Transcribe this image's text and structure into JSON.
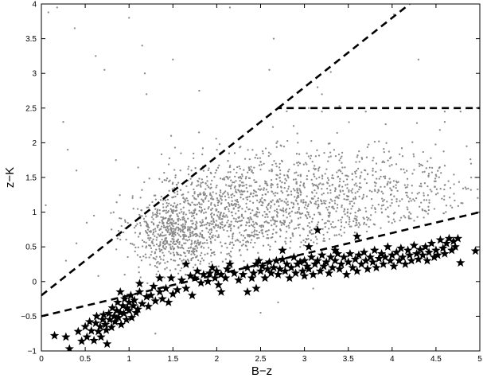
{
  "chart_data": {
    "type": "scatter",
    "xlabel": "B−z",
    "ylabel": "z−K",
    "xlim": [
      0,
      5
    ],
    "ylim": [
      -1,
      4
    ],
    "xticks": [
      0,
      0.5,
      1,
      1.5,
      2,
      2.5,
      3,
      3.5,
      4,
      4.5,
      5
    ],
    "yticks": [
      -1,
      -0.5,
      0,
      0.5,
      1,
      1.5,
      2,
      2.5,
      3,
      3.5,
      4
    ],
    "xtick_labels": [
      "0",
      "0.5",
      "1",
      "1.5",
      "2",
      "2.5",
      "3",
      "3.5",
      "4",
      "4.5",
      "5"
    ],
    "ytick_labels": [
      "−1",
      "−0.5",
      "0",
      "0.5",
      "1",
      "1.5",
      "2",
      "2.5",
      "3",
      "3.5",
      "4"
    ],
    "grid": false,
    "colors": {
      "dots": "#8a8a8a",
      "stars": "#000000",
      "lines": "#000000"
    },
    "boundary_lines": [
      {
        "x": [
          0,
          2.7,
          5
        ],
        "y": [
          -0.2,
          2.5,
          2.5
        ]
      },
      {
        "x": [
          2.7,
          4.2
        ],
        "y": [
          2.5,
          4.0
        ]
      },
      {
        "x": [
          0,
          5
        ],
        "y": [
          -0.5,
          1.0
        ]
      }
    ],
    "series": [
      {
        "marker": "dot",
        "approx_count": 2300,
        "clusters": [
          {
            "cx": 1.5,
            "cy": 0.7,
            "sx": 0.25,
            "sy": 0.28,
            "n": 500
          },
          {
            "cx": 2.1,
            "cy": 1.0,
            "sx": 0.45,
            "sy": 0.38,
            "n": 700
          },
          {
            "cx": 3.0,
            "cy": 1.2,
            "sx": 0.6,
            "sy": 0.4,
            "n": 650
          },
          {
            "cx": 4.0,
            "cy": 1.15,
            "sx": 0.55,
            "sy": 0.4,
            "n": 350
          }
        ],
        "outliers": [
          [
            0.08,
            3.88
          ],
          [
            0.18,
            3.95
          ],
          [
            0.38,
            3.65
          ],
          [
            0.62,
            3.25
          ],
          [
            0.72,
            3.05
          ],
          [
            1.0,
            3.8
          ],
          [
            1.15,
            3.4
          ],
          [
            1.18,
            3.0
          ],
          [
            1.5,
            3.2
          ],
          [
            1.48,
            2.1
          ],
          [
            2.15,
            3.95
          ],
          [
            2.65,
            3.5
          ],
          [
            2.6,
            3.05
          ],
          [
            3.3,
            3.02
          ],
          [
            3.15,
            2.8
          ],
          [
            3.2,
            2.7
          ],
          [
            3.4,
            3.2
          ],
          [
            3.05,
            2.5
          ],
          [
            3.2,
            2.45
          ],
          [
            3.7,
            2.45
          ],
          [
            4.02,
            3.85
          ],
          [
            4.3,
            3.2
          ],
          [
            4.6,
            2.45
          ],
          [
            4.78,
            2.45
          ],
          [
            0.25,
            2.3
          ],
          [
            0.3,
            1.9
          ],
          [
            0.05,
            1.1
          ],
          [
            0.4,
            1.6
          ],
          [
            0.6,
            0.95
          ],
          [
            0.85,
            1.75
          ],
          [
            1.05,
            1.05
          ],
          [
            0.4,
            0.55
          ],
          [
            0.8,
            0.75
          ],
          [
            1.2,
            2.7
          ],
          [
            1.8,
            2.75
          ],
          [
            4.6,
            2.3
          ],
          [
            4.9,
            1.7
          ],
          [
            4.85,
            1.95
          ],
          [
            4.95,
            1.5
          ],
          [
            0.95,
            0.1
          ],
          [
            2.7,
            -0.3
          ],
          [
            3.1,
            -0.1
          ],
          [
            2.5,
            -0.45
          ],
          [
            1.3,
            -0.75
          ],
          [
            0.28,
            0.3
          ]
        ]
      },
      {
        "marker": "star",
        "points": [
          [
            0.15,
            -0.78
          ],
          [
            0.32,
            -0.97
          ],
          [
            0.28,
            -0.8
          ],
          [
            0.42,
            -0.72
          ],
          [
            0.46,
            -0.86
          ],
          [
            0.5,
            -0.65
          ],
          [
            0.52,
            -0.8
          ],
          [
            0.55,
            -0.58
          ],
          [
            0.57,
            -0.71
          ],
          [
            0.6,
            -0.85
          ],
          [
            0.62,
            -0.6
          ],
          [
            0.63,
            -0.5
          ],
          [
            0.65,
            -0.72
          ],
          [
            0.67,
            -0.65
          ],
          [
            0.68,
            -0.8
          ],
          [
            0.7,
            -0.55
          ],
          [
            0.71,
            -0.48
          ],
          [
            0.73,
            -0.62
          ],
          [
            0.74,
            -0.7
          ],
          [
            0.75,
            -0.9
          ],
          [
            0.77,
            -0.46
          ],
          [
            0.78,
            -0.55
          ],
          [
            0.8,
            -0.66
          ],
          [
            0.81,
            -0.38
          ],
          [
            0.83,
            -0.5
          ],
          [
            0.84,
            -0.58
          ],
          [
            0.86,
            -0.42
          ],
          [
            0.87,
            -0.3
          ],
          [
            0.88,
            -0.52
          ],
          [
            0.9,
            -0.45
          ],
          [
            0.91,
            -0.62
          ],
          [
            0.93,
            -0.35
          ],
          [
            0.94,
            -0.46
          ],
          [
            0.95,
            -0.25
          ],
          [
            0.97,
            -0.55
          ],
          [
            0.98,
            -0.38
          ],
          [
            1.0,
            -0.42
          ],
          [
            1.0,
            -0.3
          ],
          [
            1.02,
            -0.2
          ],
          [
            1.03,
            -0.52
          ],
          [
            1.05,
            -0.35
          ],
          [
            1.06,
            -0.27
          ],
          [
            1.08,
            -0.45
          ],
          [
            1.1,
            -0.4
          ],
          [
            1.12,
            -0.15
          ],
          [
            1.15,
            -0.32
          ],
          [
            1.2,
            -0.22
          ],
          [
            1.22,
            -0.36
          ],
          [
            1.25,
            -0.2
          ],
          [
            1.3,
            -0.28
          ],
          [
            1.35,
            -0.15
          ],
          [
            1.38,
            -0.25
          ],
          [
            1.42,
            -0.1
          ],
          [
            1.45,
            -0.3
          ],
          [
            1.48,
            0.05
          ],
          [
            1.5,
            -0.18
          ],
          [
            1.55,
            -0.12
          ],
          [
            1.6,
            0.02
          ],
          [
            1.65,
            -0.1
          ],
          [
            1.7,
            0.08
          ],
          [
            1.72,
            -0.2
          ],
          [
            1.75,
            0.05
          ],
          [
            1.78,
            0.15
          ],
          [
            1.82,
            -0.02
          ],
          [
            1.85,
            0.1
          ],
          [
            1.9,
            0.0
          ],
          [
            1.92,
            0.12
          ],
          [
            1.95,
            0.2
          ],
          [
            1.98,
            0.05
          ],
          [
            2.0,
            0.15
          ],
          [
            2.02,
            -0.05
          ],
          [
            2.05,
            0.1
          ],
          [
            2.1,
            0.05
          ],
          [
            2.12,
            0.18
          ],
          [
            2.15,
            0.25
          ],
          [
            2.2,
            0.12
          ],
          [
            2.25,
            0.02
          ],
          [
            2.3,
            0.1
          ],
          [
            2.35,
            0.2
          ],
          [
            2.4,
            0.05
          ],
          [
            2.42,
            0.12
          ],
          [
            2.45,
            0.25
          ],
          [
            2.48,
            0.3
          ],
          [
            2.5,
            0.15
          ],
          [
            2.52,
            0.22
          ],
          [
            2.55,
            0.05
          ],
          [
            2.58,
            0.18
          ],
          [
            2.6,
            0.28
          ],
          [
            2.62,
            0.12
          ],
          [
            2.65,
            0.2
          ],
          [
            2.68,
            0.3
          ],
          [
            2.7,
            0.1
          ],
          [
            2.72,
            0.18
          ],
          [
            2.75,
            0.32
          ],
          [
            2.78,
            0.15
          ],
          [
            2.8,
            0.25
          ],
          [
            2.83,
            0.05
          ],
          [
            2.85,
            0.2
          ],
          [
            2.88,
            0.35
          ],
          [
            2.9,
            0.12
          ],
          [
            2.92,
            0.25
          ],
          [
            2.95,
            0.28
          ],
          [
            2.98,
            0.15
          ],
          [
            3.0,
            0.3
          ],
          [
            3.0,
            0.08
          ],
          [
            3.03,
            0.22
          ],
          [
            3.05,
            0.18
          ],
          [
            3.08,
            0.35
          ],
          [
            3.1,
            0.1
          ],
          [
            3.12,
            0.25
          ],
          [
            3.15,
            0.74
          ],
          [
            3.15,
            0.3
          ],
          [
            3.18,
            0.15
          ],
          [
            3.2,
            0.38
          ],
          [
            3.22,
            0.22
          ],
          [
            3.25,
            0.28
          ],
          [
            3.28,
            0.12
          ],
          [
            3.3,
            0.35
          ],
          [
            3.32,
            0.2
          ],
          [
            3.35,
            0.3
          ],
          [
            3.38,
            0.4
          ],
          [
            3.4,
            0.18
          ],
          [
            3.42,
            0.25
          ],
          [
            3.45,
            0.35
          ],
          [
            3.48,
            0.1
          ],
          [
            3.5,
            0.28
          ],
          [
            3.52,
            0.4
          ],
          [
            3.55,
            0.2
          ],
          [
            3.58,
            0.32
          ],
          [
            3.6,
            0.15
          ],
          [
            3.62,
            0.38
          ],
          [
            3.65,
            0.25
          ],
          [
            3.68,
            0.42
          ],
          [
            3.7,
            0.3
          ],
          [
            3.72,
            0.18
          ],
          [
            3.75,
            0.35
          ],
          [
            3.78,
            0.28
          ],
          [
            3.8,
            0.45
          ],
          [
            3.82,
            0.2
          ],
          [
            3.85,
            0.33
          ],
          [
            3.88,
            0.4
          ],
          [
            3.9,
            0.25
          ],
          [
            3.92,
            0.35
          ],
          [
            3.95,
            0.5
          ],
          [
            3.98,
            0.3
          ],
          [
            4.0,
            0.38
          ],
          [
            4.02,
            0.22
          ],
          [
            4.05,
            0.42
          ],
          [
            4.08,
            0.3
          ],
          [
            4.1,
            0.48
          ],
          [
            4.12,
            0.35
          ],
          [
            4.15,
            0.25
          ],
          [
            4.18,
            0.45
          ],
          [
            4.2,
            0.38
          ],
          [
            4.22,
            0.3
          ],
          [
            4.25,
            0.52
          ],
          [
            4.28,
            0.4
          ],
          [
            4.3,
            0.32
          ],
          [
            4.32,
            0.46
          ],
          [
            4.35,
            0.38
          ],
          [
            4.38,
            0.5
          ],
          [
            4.4,
            0.3
          ],
          [
            4.42,
            0.42
          ],
          [
            4.45,
            0.55
          ],
          [
            4.48,
            0.35
          ],
          [
            4.5,
            0.45
          ],
          [
            4.52,
            0.38
          ],
          [
            4.55,
            0.6
          ],
          [
            4.58,
            0.48
          ],
          [
            4.6,
            0.4
          ],
          [
            4.62,
            0.55
          ],
          [
            4.65,
            0.62
          ],
          [
            4.68,
            0.45
          ],
          [
            4.7,
            0.58
          ],
          [
            4.72,
            0.5
          ],
          [
            4.75,
            0.62
          ],
          [
            4.78,
            0.27
          ],
          [
            4.95,
            0.44
          ],
          [
            3.6,
            0.65
          ],
          [
            3.35,
            0.45
          ],
          [
            2.75,
            0.45
          ],
          [
            3.05,
            0.5
          ],
          [
            2.35,
            -0.15
          ],
          [
            1.65,
            0.25
          ],
          [
            1.28,
            -0.07
          ],
          [
            1.12,
            -0.03
          ],
          [
            0.9,
            -0.15
          ],
          [
            1.35,
            0.05
          ],
          [
            2.45,
            -0.1
          ],
          [
            2.05,
            -0.15
          ]
        ]
      }
    ]
  }
}
